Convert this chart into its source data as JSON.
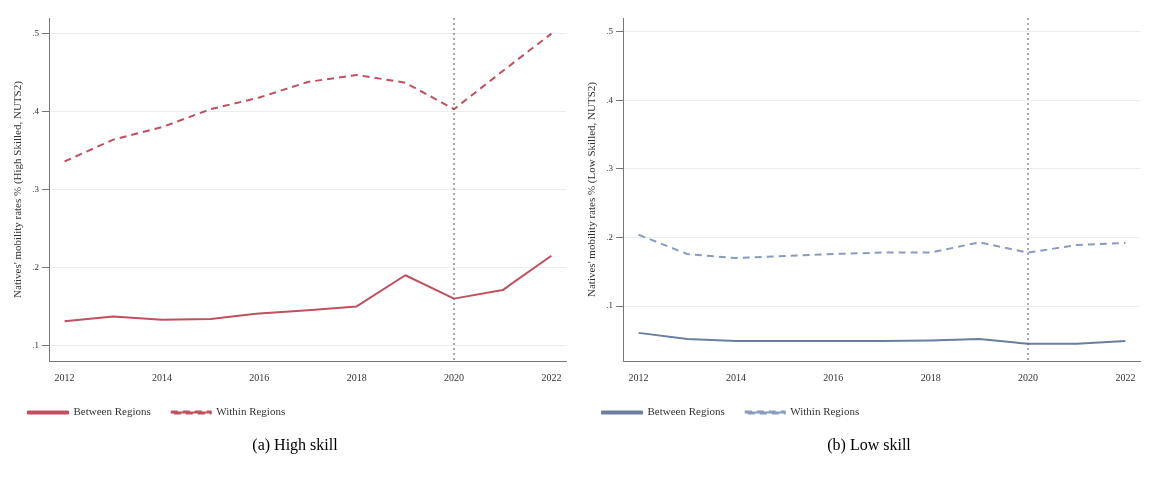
{
  "chart_data": [
    {
      "type": "line",
      "xlabel": null,
      "ylabel": "Natives' mobility rates % (High Skilled, NUTS2)",
      "x": [
        2012,
        2013,
        2014,
        2015,
        2016,
        2017,
        2018,
        2019,
        2020,
        2021,
        2022
      ],
      "xlim": [
        2011.7,
        2022.3
      ],
      "xticks": [
        2012,
        2014,
        2016,
        2018,
        2020,
        2022
      ],
      "ylim": [
        0.08,
        0.52
      ],
      "yticks": [
        {
          "value": 0.1,
          "label": ".1"
        },
        {
          "value": 0.2,
          "label": ".2"
        },
        {
          "value": 0.3,
          "label": ".3"
        },
        {
          "value": 0.4,
          "label": ".4"
        },
        {
          "value": 0.5,
          "label": ".5"
        }
      ],
      "grid": "y",
      "legend": "bottom left",
      "marker": "none",
      "ref_lines": [
        {
          "axis": "x",
          "value": 2020,
          "color": "#555555",
          "line_style": "dotted"
        }
      ],
      "annotations": [
        "(a) High skill"
      ],
      "series": [
        {
          "name": "Between Regions",
          "color": "#c0505f",
          "line_style": "solid",
          "values": [
            0.131,
            0.137,
            0.133,
            0.134,
            0.141,
            0.145,
            0.15,
            0.19,
            0.16,
            0.171,
            0.215
          ]
        },
        {
          "name": "Within Regions",
          "color": "#c0505f",
          "line_style": "dashed",
          "values": [
            0.336,
            0.364,
            0.38,
            0.403,
            0.418,
            0.438,
            0.447,
            0.437,
            0.403,
            0.452,
            0.5
          ]
        }
      ]
    },
    {
      "type": "line",
      "ylabel": "Natives' mobility rates % (Low Skilled, NUTS2)",
      "x": [
        2012,
        2013,
        2014,
        2015,
        2016,
        2017,
        2018,
        2019,
        2020,
        2021,
        2022
      ],
      "xlim": [
        2011.7,
        2022.3
      ],
      "xticks": [
        2012,
        2014,
        2016,
        2018,
        2020,
        2022
      ],
      "ylim": [
        0.02,
        0.52
      ],
      "yticks": [
        {
          "value": 0.1,
          "label": ".1"
        },
        {
          "value": 0.2,
          "label": ".2"
        },
        {
          "value": 0.3,
          "label": ".3"
        },
        {
          "value": 0.4,
          "label": ".4"
        },
        {
          "value": 0.5,
          "label": ".5"
        }
      ],
      "grid": "y",
      "legend": "bottom left",
      "marker": "none",
      "ref_lines": [
        {
          "axis": "x",
          "value": 2020,
          "color": "#555555",
          "line_style": "dotted"
        }
      ],
      "annotations": [
        "(b) Low skill"
      ],
      "series": [
        {
          "name": "Between Regions",
          "color": "#6a7f9e",
          "line_style": "solid",
          "values": [
            0.061,
            0.052,
            0.049,
            0.049,
            0.049,
            0.049,
            0.05,
            0.052,
            0.045,
            0.045,
            0.049
          ]
        },
        {
          "name": "Within Regions",
          "color": "#8a9cbc",
          "line_style": "dashed",
          "values": [
            0.204,
            0.176,
            0.17,
            0.173,
            0.176,
            0.178,
            0.178,
            0.193,
            0.178,
            0.189,
            0.192
          ]
        }
      ]
    }
  ]
}
